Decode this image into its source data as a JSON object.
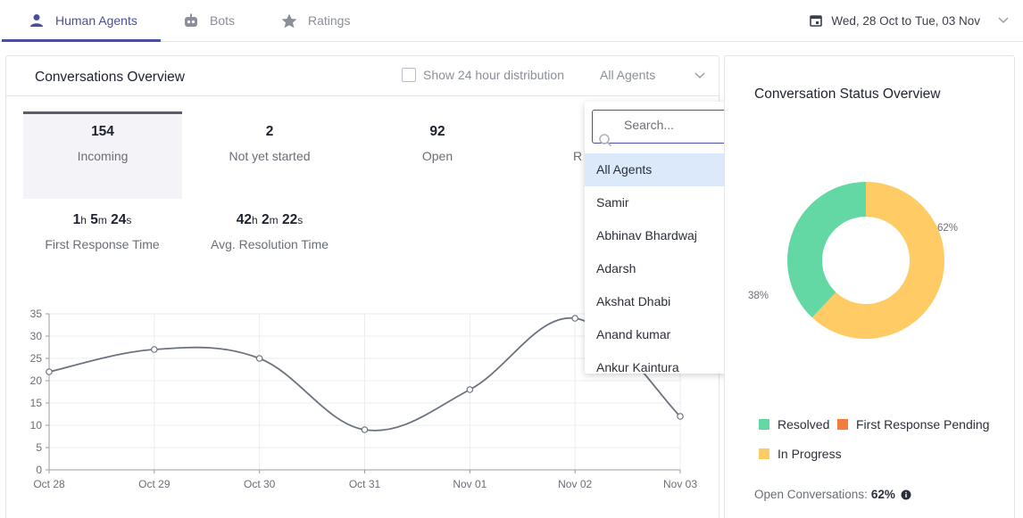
{
  "tabs": [
    {
      "label": "Human Agents",
      "icon": "user-icon",
      "active": true
    },
    {
      "label": "Bots",
      "icon": "bot-icon",
      "active": false
    },
    {
      "label": "Ratings",
      "icon": "star-icon",
      "active": false
    }
  ],
  "date_range": {
    "start": "Wed, 28 Oct",
    "separator": "to",
    "end": "Tue, 03 Nov"
  },
  "overview": {
    "title": "Conversations Overview",
    "checkbox_label": "Show 24 hour distribution",
    "agent_select": "All Agents",
    "stats": [
      {
        "value": "154",
        "label": "Incoming"
      },
      {
        "value": "2",
        "label": "Not yet started"
      },
      {
        "value": "92",
        "label": "Open"
      },
      {
        "value": "",
        "label": "R"
      }
    ],
    "durations": {
      "first": {
        "h": "1",
        "m": "5",
        "s": "24",
        "label": "First Response Time"
      },
      "avg": {
        "h": "42",
        "m": "2",
        "s": "22",
        "label": "Avg. Resolution Time"
      }
    },
    "units": {
      "h": "h",
      "m": "m",
      "s": "s"
    }
  },
  "dropdown": {
    "search_placeholder": "Search...",
    "items": [
      "All Agents",
      "Samir",
      "Abhinav Bhardwaj",
      "Adarsh",
      "Akshat Dhabi",
      "Anand kumar",
      "Ankur Kaintura"
    ],
    "selected": "All Agents"
  },
  "chart_data": [
    {
      "type": "line",
      "x": [
        "Oct 28",
        "Oct 29",
        "Oct 30",
        "Oct 31",
        "Nov 01",
        "Nov 02",
        "Nov 03"
      ],
      "series": [
        {
          "values": [
            22,
            27,
            25,
            9,
            18,
            34,
            12
          ]
        }
      ],
      "ylim": [
        0,
        35
      ],
      "yticks": [
        0,
        5,
        10,
        15,
        20,
        25,
        30,
        35
      ],
      "grid": true
    },
    {
      "type": "pie",
      "title": "Conversation Status Overview",
      "slices": [
        {
          "label": "Resolved",
          "value": 38,
          "color": "#63d8a4"
        },
        {
          "label": "First Response Pending",
          "value": 0,
          "color": "#f47c3c"
        },
        {
          "label": "In Progress",
          "value": 62,
          "color": "#fecb64"
        }
      ],
      "slice_labels": [
        "38%",
        "62%"
      ]
    }
  ],
  "status": {
    "open_label": "Open Conversations:",
    "open_value": "62%"
  },
  "colors": {
    "accent": "#4b4f9c",
    "line": "#6b7280",
    "selected_bg": "#dbe9fb"
  }
}
